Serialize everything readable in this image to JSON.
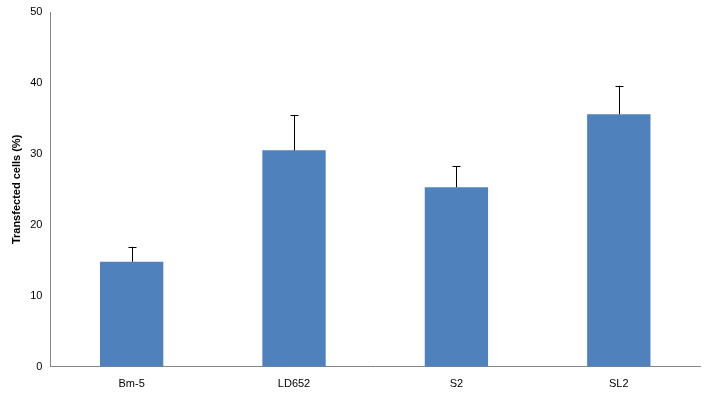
{
  "chart_data": {
    "type": "bar",
    "y_label": "Transfected cells (%)",
    "categories": [
      "Bm-5",
      "LD652",
      "S2",
      "SL2"
    ],
    "values": [
      14.8,
      30.5,
      25.3,
      35.6
    ],
    "errors": [
      2.1,
      5.0,
      3.0,
      4.0
    ],
    "color": "#4f81bd",
    "ylim": [
      0,
      50
    ],
    "yticks": [
      0,
      10,
      20,
      30,
      40,
      50
    ],
    "grid": false
  }
}
